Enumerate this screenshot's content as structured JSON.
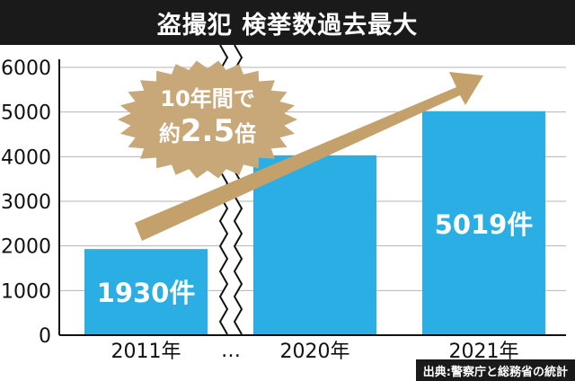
{
  "title": "盗撮犯 検挙数過去最大",
  "source": "出典:警察庁と総務省の統計",
  "callout": {
    "line1": "10年間で",
    "line2_prefix": "約",
    "line2_value": "2.5",
    "line2_suffix": "倍"
  },
  "axis_break_symbol": "…",
  "colors": {
    "bar": "#2aaee3",
    "arrow": "#c4a06a",
    "burst": "#c8a878",
    "gap": "#ffffff",
    "title_bg": "#1a1a1a"
  },
  "chart_data": {
    "type": "bar",
    "categories": [
      "2011年",
      "2020年",
      "2021年"
    ],
    "values": [
      1930,
      4030,
      5019
    ],
    "data_labels": [
      "1930件",
      "",
      "5019件"
    ],
    "ylim": [
      0,
      6000
    ],
    "yticks": [
      0,
      1000,
      2000,
      3000,
      4000,
      5000,
      6000
    ],
    "grid": true,
    "axis_break_between": [
      "2011年",
      "2020年"
    ]
  }
}
